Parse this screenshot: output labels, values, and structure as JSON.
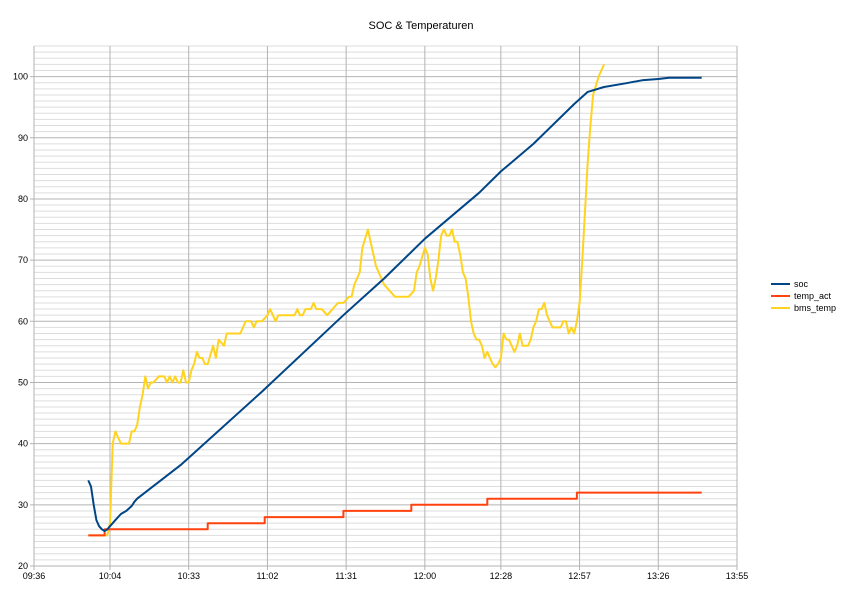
{
  "chart_data": {
    "type": "line",
    "title": "SOC & Temperaturen",
    "xlabel": "",
    "ylabel": "",
    "xlim": [
      "09:36",
      "13:55"
    ],
    "ylim": [
      20,
      105
    ],
    "x_ticks": [
      "09:36",
      "10:04",
      "10:33",
      "11:02",
      "11:31",
      "12:00",
      "12:28",
      "12:57",
      "13:26",
      "13:55"
    ],
    "y_ticks": [
      20,
      30,
      40,
      50,
      60,
      70,
      80,
      90,
      100
    ],
    "grid": {
      "major_x": true,
      "major_y": true,
      "minor_y_step": 1
    },
    "legend_position": "right",
    "colors": {
      "soc": "#004586",
      "temp_act": "#ff420e",
      "bms_temp": "#ffd320",
      "major_grid": "#b3b3b3",
      "minor_grid": "#dddddd"
    },
    "series": [
      {
        "name": "soc",
        "color": "#004586",
        "points": [
          [
            "09:56",
            34
          ],
          [
            "09:57",
            33
          ],
          [
            "09:58",
            30
          ],
          [
            "09:59",
            27.5
          ],
          [
            "10:00",
            26.5
          ],
          [
            "10:01",
            26
          ],
          [
            "10:02",
            25.7
          ],
          [
            "10:03",
            26
          ],
          [
            "10:04",
            26.5
          ],
          [
            "10:06",
            27.5
          ],
          [
            "10:08",
            28.5
          ],
          [
            "10:10",
            29
          ],
          [
            "10:12",
            29.8
          ],
          [
            "10:13",
            30.5
          ],
          [
            "10:14",
            31
          ],
          [
            "10:30",
            36.5
          ],
          [
            "11:00",
            48.5
          ],
          [
            "11:30",
            61
          ],
          [
            "11:45",
            67
          ],
          [
            "12:00",
            73.5
          ],
          [
            "12:20",
            81
          ],
          [
            "12:28",
            84.5
          ],
          [
            "12:40",
            89
          ],
          [
            "12:55",
            95.5
          ],
          [
            "13:00",
            97.5
          ],
          [
            "13:06",
            98.3
          ],
          [
            "13:14",
            98.9
          ],
          [
            "13:20",
            99.4
          ],
          [
            "13:26",
            99.6
          ],
          [
            "13:30",
            99.8
          ],
          [
            "13:42",
            99.8
          ]
        ]
      },
      {
        "name": "temp_act",
        "color": "#ff420e",
        "points": [
          [
            "09:56",
            25
          ],
          [
            "10:02",
            25
          ],
          [
            "10:02",
            26
          ],
          [
            "10:40",
            26
          ],
          [
            "10:40",
            27
          ],
          [
            "11:01",
            27
          ],
          [
            "11:01",
            28
          ],
          [
            "11:30",
            28
          ],
          [
            "11:30",
            29
          ],
          [
            "11:55",
            29
          ],
          [
            "11:55",
            30
          ],
          [
            "12:23",
            30
          ],
          [
            "12:23",
            31
          ],
          [
            "12:56",
            31
          ],
          [
            "12:56",
            32
          ],
          [
            "13:42",
            32
          ]
        ]
      },
      {
        "name": "bms_temp",
        "color": "#ffd320",
        "points": [
          [
            "09:56",
            25
          ],
          [
            "10:03",
            25
          ],
          [
            "10:04",
            27
          ],
          [
            "10:05",
            40
          ],
          [
            "10:06",
            42
          ],
          [
            "10:07",
            41
          ],
          [
            "10:08",
            40
          ],
          [
            "10:11",
            40
          ],
          [
            "10:12",
            42
          ],
          [
            "10:13",
            42
          ],
          [
            "10:14",
            43
          ],
          [
            "10:15",
            46
          ],
          [
            "10:16",
            48
          ],
          [
            "10:17",
            51
          ],
          [
            "10:18",
            49
          ],
          [
            "10:19",
            50
          ],
          [
            "10:20",
            50
          ],
          [
            "10:22",
            51
          ],
          [
            "10:24",
            51
          ],
          [
            "10:25",
            50
          ],
          [
            "10:26",
            51
          ],
          [
            "10:27",
            50
          ],
          [
            "10:28",
            51
          ],
          [
            "10:29",
            50
          ],
          [
            "10:30",
            50
          ],
          [
            "10:31",
            52
          ],
          [
            "10:32",
            50
          ],
          [
            "10:33",
            50
          ],
          [
            "10:34",
            52
          ],
          [
            "10:35",
            53
          ],
          [
            "10:36",
            55
          ],
          [
            "10:37",
            54
          ],
          [
            "10:38",
            54
          ],
          [
            "10:39",
            53
          ],
          [
            "10:40",
            53
          ],
          [
            "10:42",
            56
          ],
          [
            "10:43",
            54
          ],
          [
            "10:44",
            57
          ],
          [
            "10:46",
            56
          ],
          [
            "10:47",
            58
          ],
          [
            "10:50",
            58
          ],
          [
            "10:52",
            58
          ],
          [
            "10:54",
            60
          ],
          [
            "10:56",
            60
          ],
          [
            "10:57",
            59
          ],
          [
            "10:58",
            60
          ],
          [
            "11:00",
            60
          ],
          [
            "11:02",
            61
          ],
          [
            "11:03",
            62
          ],
          [
            "11:04",
            61
          ],
          [
            "11:05",
            60
          ],
          [
            "11:06",
            61
          ],
          [
            "11:10",
            61
          ],
          [
            "11:12",
            61
          ],
          [
            "11:13",
            62
          ],
          [
            "11:14",
            61
          ],
          [
            "11:15",
            61
          ],
          [
            "11:16",
            62
          ],
          [
            "11:18",
            62
          ],
          [
            "11:19",
            63
          ],
          [
            "11:20",
            62
          ],
          [
            "11:22",
            62
          ],
          [
            "11:24",
            61
          ],
          [
            "11:26",
            62
          ],
          [
            "11:28",
            63
          ],
          [
            "11:30",
            63
          ],
          [
            "11:32",
            64
          ],
          [
            "11:33",
            64
          ],
          [
            "11:34",
            66
          ],
          [
            "11:36",
            68
          ],
          [
            "11:37",
            72
          ],
          [
            "11:39",
            75
          ],
          [
            "11:40",
            73
          ],
          [
            "11:41",
            71
          ],
          [
            "11:42",
            69
          ],
          [
            "11:44",
            67
          ],
          [
            "11:45",
            66
          ],
          [
            "11:47",
            65
          ],
          [
            "11:49",
            64
          ],
          [
            "11:50",
            64
          ],
          [
            "11:52",
            64
          ],
          [
            "11:54",
            64
          ],
          [
            "11:56",
            65
          ],
          [
            "11:57",
            68
          ],
          [
            "11:58",
            69
          ],
          [
            "12:00",
            72
          ],
          [
            "12:01",
            71
          ],
          [
            "12:02",
            67
          ],
          [
            "12:03",
            65
          ],
          [
            "12:04",
            67
          ],
          [
            "12:05",
            70
          ],
          [
            "12:06",
            74
          ],
          [
            "12:07",
            75
          ],
          [
            "12:08",
            74
          ],
          [
            "12:09",
            74
          ],
          [
            "12:10",
            75
          ],
          [
            "12:11",
            73
          ],
          [
            "12:12",
            73
          ],
          [
            "12:13",
            71
          ],
          [
            "12:14",
            68
          ],
          [
            "12:15",
            67
          ],
          [
            "12:16",
            64
          ],
          [
            "12:17",
            60
          ],
          [
            "12:18",
            58
          ],
          [
            "12:19",
            57
          ],
          [
            "12:20",
            57
          ],
          [
            "12:21",
            56
          ],
          [
            "12:22",
            54
          ],
          [
            "12:23",
            55
          ],
          [
            "12:24",
            54
          ],
          [
            "12:25",
            53
          ],
          [
            "12:26",
            52.5
          ],
          [
            "12:27",
            53
          ],
          [
            "12:28",
            54
          ],
          [
            "12:29",
            58
          ],
          [
            "12:30",
            57
          ],
          [
            "12:31",
            57
          ],
          [
            "12:32",
            56
          ],
          [
            "12:33",
            55
          ],
          [
            "12:34",
            56
          ],
          [
            "12:35",
            58
          ],
          [
            "12:36",
            56
          ],
          [
            "12:38",
            56
          ],
          [
            "12:39",
            57
          ],
          [
            "12:40",
            59
          ],
          [
            "12:41",
            60
          ],
          [
            "12:42",
            62
          ],
          [
            "12:43",
            62
          ],
          [
            "12:44",
            63
          ],
          [
            "12:45",
            61
          ],
          [
            "12:46",
            60
          ],
          [
            "12:47",
            59
          ],
          [
            "12:50",
            59
          ],
          [
            "12:51",
            60
          ],
          [
            "12:52",
            60
          ],
          [
            "12:53",
            58
          ],
          [
            "12:54",
            59
          ],
          [
            "12:55",
            58
          ],
          [
            "12:56",
            60
          ],
          [
            "12:57",
            63
          ],
          [
            "12:58",
            70
          ],
          [
            "12:59",
            78
          ],
          [
            "13:00",
            86
          ],
          [
            "13:01",
            92
          ],
          [
            "13:02",
            97
          ],
          [
            "13:04",
            100
          ],
          [
            "13:06",
            102
          ]
        ]
      }
    ]
  }
}
